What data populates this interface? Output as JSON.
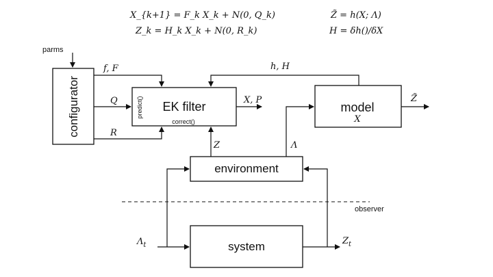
{
  "equations": {
    "state": "X_{k+1} = F_k X_k + N(0, Q_k)",
    "measurement": "Z_k = H_k X_k + N(0, R_k)",
    "prediction": "Z̃ = h(X; Λ)",
    "jacobian": "H = δh()/δX"
  },
  "blocks": {
    "configurator": "configurator",
    "ek_filter": "EK filter",
    "predict": "predict()",
    "correct": "correct()",
    "model": "model",
    "model_state": "X",
    "environment": "environment",
    "system": "system"
  },
  "labels": {
    "parms": "parms",
    "fF": "f, F",
    "Q": "Q",
    "R": "R",
    "XP": "X, P",
    "hH": "h, H",
    "Z": "Z",
    "Lambda": "Λ",
    "Ztilde": "Z̃",
    "Lambda_t": "Λ",
    "Lambda_t_sub": "t",
    "Z_t": "Z",
    "Z_t_sub": "t",
    "observer": "observer"
  },
  "colors": {
    "ink": "#111111",
    "background": "#ffffff"
  }
}
